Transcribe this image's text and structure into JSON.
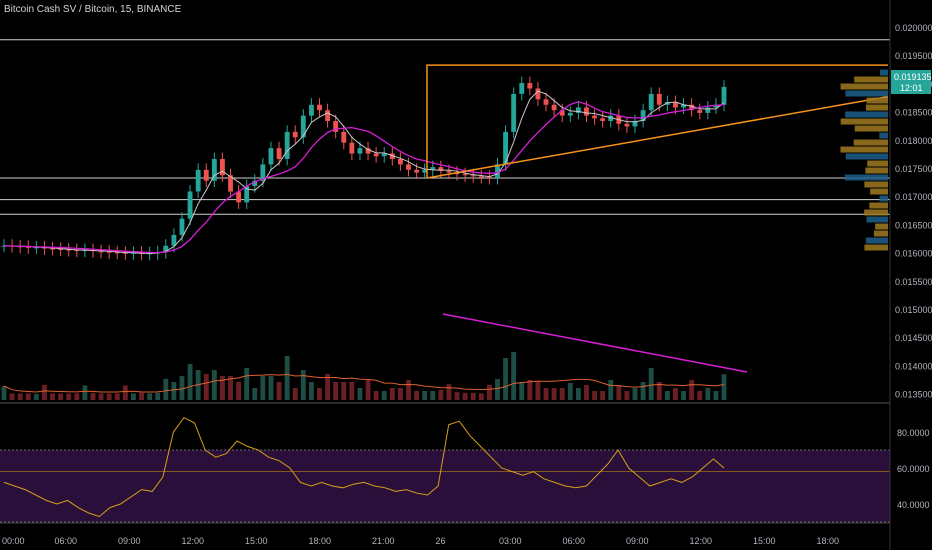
{
  "header": {
    "title": "Bitcoin Cash SV / Bitcoin, 15, BINANCE"
  },
  "colors": {
    "background": "#000000",
    "up": "#26a69a",
    "down": "#ef5350",
    "ma_fast": "#c8c8c8",
    "ma_slow": "#d61fd6",
    "pattern": "#f7931a",
    "rsi_line": "#d4a017",
    "rsi_band": "#2a0f3a",
    "volume_ma": "#e06030",
    "tag": "#26a69a"
  },
  "price_axis": {
    "ticks": [
      "0.020000",
      "0.019500",
      "0.019000",
      "0.018500",
      "0.018000",
      "0.017500",
      "0.017000",
      "0.016500",
      "0.016000",
      "0.015500",
      "0.015000",
      "0.014500",
      "0.014000",
      "0.013500"
    ],
    "current_price": "0.019135",
    "countdown": "12:01"
  },
  "rsi_axis": {
    "ticks": [
      "80.0000",
      "60.0000",
      "40.0000"
    ]
  },
  "time_axis": {
    "labels": [
      "00:00",
      "06:00",
      "09:00",
      "12:00",
      "15:00",
      "18:00",
      "21:00",
      "26",
      "03:00",
      "06:00",
      "09:00",
      "12:00",
      "15:00",
      "18:00"
    ]
  },
  "chart_data": {
    "type": "candlestick",
    "symbol": "Bitcoin Cash SV / Bitcoin",
    "interval": "15",
    "exchange": "BINANCE",
    "ylim": [
      0.0133,
      0.0204
    ],
    "horizontal_levels": [
      0.02,
      0.01745,
      0.01705,
      0.01678
    ],
    "pattern": {
      "type": "ascending triangle",
      "resistance": 0.01953,
      "support_start": 0.01745,
      "support_end": 0.01895
    },
    "price_closes": [
      0.0162,
      0.01619,
      0.01618,
      0.01617,
      0.01617,
      0.01615,
      0.01614,
      0.01613,
      0.01612,
      0.01611,
      0.01612,
      0.0161,
      0.01609,
      0.01608,
      0.01607,
      0.01606,
      0.01607,
      0.01605,
      0.01606,
      0.01608,
      0.0162,
      0.0164,
      0.0167,
      0.0172,
      0.0176,
      0.0174,
      0.0178,
      0.0175,
      0.0172,
      0.017,
      0.0173,
      0.0174,
      0.0177,
      0.018,
      0.0178,
      0.0183,
      0.0182,
      0.0186,
      0.0188,
      0.0187,
      0.0185,
      0.0183,
      0.0181,
      0.0179,
      0.018,
      0.0179,
      0.01785,
      0.0179,
      0.0178,
      0.0177,
      0.0176,
      0.01755,
      0.0176,
      0.01765,
      0.01758,
      0.01755,
      0.01752,
      0.0175,
      0.01748,
      0.01747,
      0.01745,
      0.0177,
      0.0183,
      0.019,
      0.0192,
      0.0191,
      0.0189,
      0.0188,
      0.0187,
      0.0186,
      0.01865,
      0.01875,
      0.0186,
      0.01855,
      0.0185,
      0.0186,
      0.01845,
      0.0184,
      0.0185,
      0.0187,
      0.019,
      0.0188,
      0.01885,
      0.01875,
      0.0188,
      0.0187,
      0.01865,
      0.01875,
      0.0188,
      0.01913
    ],
    "rsi": [
      52,
      50,
      48,
      45,
      42,
      40,
      42,
      38,
      35,
      33,
      38,
      40,
      44,
      48,
      47,
      55,
      80,
      88,
      85,
      70,
      66,
      68,
      75,
      72,
      70,
      66,
      64,
      60,
      52,
      50,
      52,
      50,
      49,
      51,
      52,
      50,
      49,
      47,
      48,
      46,
      45,
      50,
      84,
      86,
      78,
      72,
      66,
      60,
      58,
      56,
      58,
      54,
      52,
      50,
      49,
      50,
      56,
      62,
      70,
      60,
      55,
      50,
      52,
      54,
      52,
      55,
      60,
      65,
      60
    ]
  }
}
